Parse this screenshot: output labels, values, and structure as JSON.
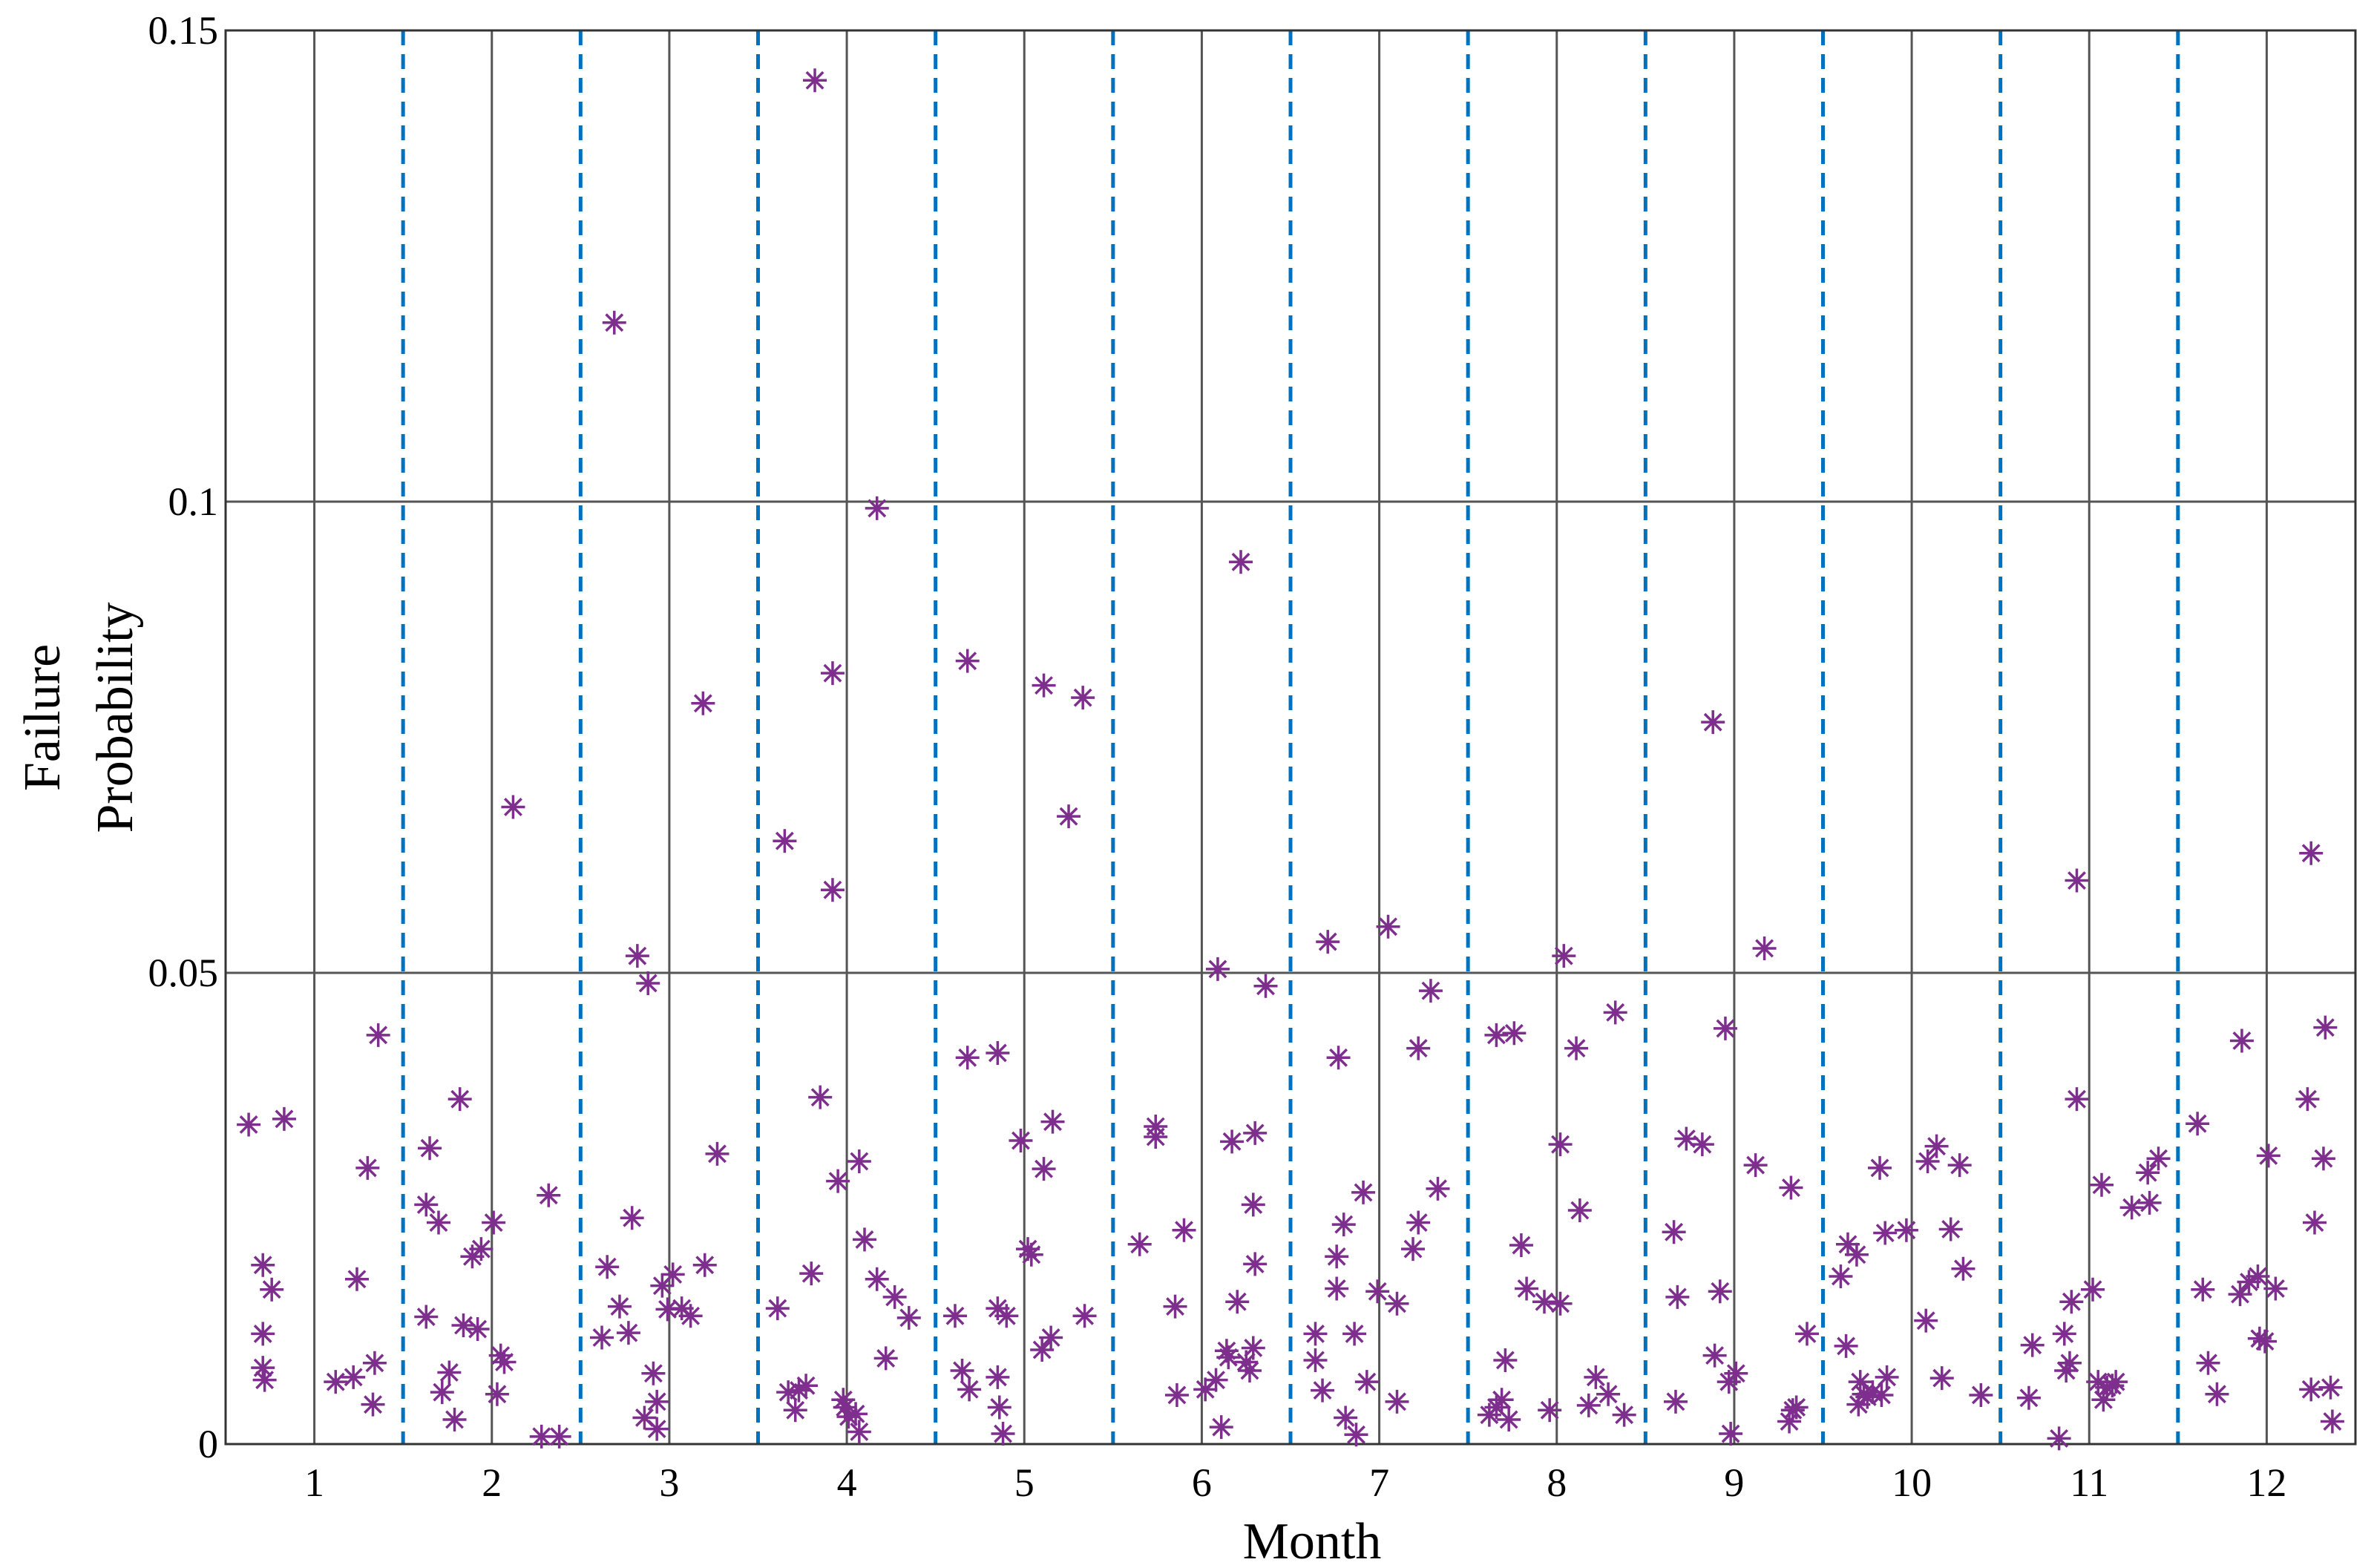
{
  "chart_data": {
    "type": "scatter",
    "marker": "asterisk",
    "color": "#7e2f8e",
    "xlabel": "Month",
    "ylabel": [
      "Failure",
      "Probability"
    ],
    "xlim": [
      0.5,
      12.5
    ],
    "xticks": [
      1,
      2,
      3,
      4,
      5,
      6,
      7,
      8,
      9,
      10,
      11,
      12
    ],
    "ylim": [
      0,
      0.15
    ],
    "yticks": [
      0,
      0.05,
      0.1,
      0.15
    ],
    "grid": true,
    "dividers": [
      1.5,
      2.5,
      3.5,
      4.5,
      5.5,
      6.5,
      7.5,
      8.5,
      9.5,
      10.5,
      11.5
    ],
    "divider_color": "#0072bd",
    "x": [
      0.63,
      0.71,
      0.71,
      0.71,
      0.72,
      0.76,
      0.83,
      1.12,
      1.22,
      1.24,
      1.3,
      1.33,
      1.34,
      1.36,
      1.63,
      1.65,
      1.63,
      1.7,
      1.72,
      1.76,
      1.79,
      1.82,
      1.84,
      1.89,
      1.92,
      1.94,
      2.01,
      2.03,
      2.05,
      2.07,
      2.12,
      2.28,
      2.32,
      2.38,
      2.62,
      2.65,
      2.69,
      2.72,
      2.79,
      2.77,
      2.82,
      2.86,
      2.88,
      2.91,
      2.93,
      2.93,
      2.96,
      2.99,
      3.02,
      3.07,
      3.12,
      3.19,
      3.2,
      3.27,
      3.61,
      3.65,
      3.67,
      3.71,
      3.73,
      3.77,
      3.8,
      3.82,
      3.85,
      3.92,
      3.92,
      3.95,
      3.98,
      3.99,
      4.01,
      4.05,
      4.07,
      4.07,
      4.1,
      4.17,
      4.17,
      4.22,
      4.27,
      4.35,
      4.61,
      4.65,
      4.68,
      4.69,
      4.68,
      4.85,
      4.85,
      4.85,
      4.86,
      4.88,
      4.9,
      4.98,
      5.02,
      5.04,
      5.1,
      5.11,
      5.11,
      5.15,
      5.16,
      5.25,
      5.33,
      5.34,
      5.65,
      5.74,
      5.74,
      5.85,
      5.86,
      5.9,
      6.02,
      6.08,
      6.09,
      6.11,
      6.14,
      6.15,
      6.17,
      6.2,
      6.22,
      6.25,
      6.27,
      6.29,
      6.3,
      6.29,
      6.3,
      6.36,
      6.64,
      6.64,
      6.68,
      6.71,
      6.76,
      6.76,
      6.77,
      6.8,
      6.81,
      6.86,
      6.87,
      6.91,
      6.93,
      6.99,
      7.05,
      7.1,
      7.1,
      7.19,
      7.22,
      7.22,
      7.29,
      7.33,
      7.62,
      7.66,
      7.66,
      7.69,
      7.71,
      7.73,
      7.76,
      7.8,
      7.83,
      7.93,
      7.96,
      8.02,
      8.02,
      8.04,
      8.11,
      8.13,
      8.18,
      8.22,
      8.29,
      8.33,
      8.38,
      8.66,
      8.67,
      8.68,
      8.73,
      8.82,
      8.88,
      8.89,
      8.92,
      8.95,
      8.97,
      8.98,
      9.01,
      9.12,
      9.17,
      9.32,
      9.31,
      9.33,
      9.35,
      9.41,
      9.6,
      9.63,
      9.64,
      9.69,
      9.7,
      9.71,
      9.73,
      9.75,
      9.78,
      9.82,
      9.83,
      9.85,
      9.86,
      9.97,
      10.08,
      10.09,
      10.14,
      10.17,
      10.22,
      10.27,
      10.29,
      10.39,
      10.66,
      10.68,
      10.83,
      10.86,
      10.87,
      10.89,
      10.93,
      10.93,
      10.9,
      11.02,
      11.05,
      11.07,
      11.08,
      11.1,
      11.13,
      11.15,
      11.24,
      11.33,
      11.34,
      11.39,
      11.61,
      11.64,
      11.67,
      11.72,
      11.86,
      11.85,
      11.9,
      11.95,
      11.96,
      11.99,
      12.01,
      12.05,
      12.23,
      12.25,
      12.25,
      12.27,
      12.32,
      12.33,
      12.36,
      12.37
    ],
    "values": [
      0.0339,
      0.019,
      0.0117,
      0.0081,
      0.0068,
      0.0164,
      0.0345,
      0.0066,
      0.0071,
      0.0175,
      0.0293,
      0.0042,
      0.0086,
      0.0434,
      0.0254,
      0.0314,
      0.0135,
      0.0235,
      0.0055,
      0.0076,
      0.0026,
      0.0366,
      0.0126,
      0.0199,
      0.0122,
      0.0207,
      0.0235,
      0.0053,
      0.0094,
      0.0087,
      0.0676,
      0.0008,
      0.0264,
      0.0008,
      0.0113,
      0.0188,
      0.119,
      0.0146,
      0.024,
      0.0118,
      0.0518,
      0.0028,
      0.0489,
      0.0075,
      0.0045,
      0.0016,
      0.0168,
      0.0143,
      0.018,
      0.0144,
      0.0136,
      0.0786,
      0.019,
      0.0308,
      0.0144,
      0.064,
      0.0055,
      0.0036,
      0.0057,
      0.0062,
      0.0181,
      0.1447,
      0.0368,
      0.0818,
      0.0588,
      0.0279,
      0.0047,
      0.0039,
      0.0029,
      0.0032,
      0.0013,
      0.03,
      0.0217,
      0.0993,
      0.0175,
      0.0091,
      0.0156,
      0.0134,
      0.0136,
      0.0078,
      0.041,
      0.0058,
      0.0831,
      0.0415,
      0.0071,
      0.0144,
      0.0039,
      0.0011,
      0.0136,
      0.0322,
      0.0207,
      0.0201,
      0.01,
      0.0805,
      0.0292,
      0.0113,
      0.0342,
      0.0666,
      0.0792,
      0.0136,
      0.0212,
      0.0337,
      0.0326,
      0.0146,
      0.0052,
      0.0227,
      0.0058,
      0.0068,
      0.0504,
      0.0018,
      0.0099,
      0.0092,
      0.0321,
      0.0151,
      0.0936,
      0.0087,
      0.0078,
      0.0102,
      0.033,
      0.0254,
      0.0191,
      0.0486,
      0.0117,
      0.0089,
      0.0057,
      0.0533,
      0.0199,
      0.0165,
      0.041,
      0.0233,
      0.0028,
      0.0117,
      0.001,
      0.0267,
      0.0066,
      0.0162,
      0.0549,
      0.0149,
      0.0045,
      0.0207,
      0.0235,
      0.042,
      0.0481,
      0.0271,
      0.0031,
      0.0434,
      0.0039,
      0.0047,
      0.0089,
      0.0026,
      0.0436,
      0.0211,
      0.0165,
      0.0151,
      0.0036,
      0.0149,
      0.0318,
      0.0518,
      0.042,
      0.0248,
      0.0041,
      0.0071,
      0.0053,
      0.0458,
      0.0031,
      0.0225,
      0.0045,
      0.0156,
      0.0324,
      0.0318,
      0.0766,
      0.0094,
      0.0162,
      0.0441,
      0.0066,
      0.0011,
      0.0075,
      0.0296,
      0.0526,
      0.0272,
      0.0024,
      0.0036,
      0.0039,
      0.0117,
      0.0178,
      0.0104,
      0.0212,
      0.0201,
      0.0042,
      0.0066,
      0.0053,
      0.005,
      0.0055,
      0.0293,
      0.0052,
      0.0224,
      0.0071,
      0.0227,
      0.0131,
      0.03,
      0.0316,
      0.007,
      0.0228,
      0.0296,
      0.0186,
      0.0052,
      0.0049,
      0.0105,
      0.0006,
      0.0117,
      0.0078,
      0.0086,
      0.0598,
      0.0366,
      0.0151,
      0.0164,
      0.0066,
      0.0275,
      0.0047,
      0.006,
      0.0062,
      0.0066,
      0.0251,
      0.0288,
      0.0256,
      0.0303,
      0.034,
      0.0164,
      0.0086,
      0.0053,
      0.0428,
      0.0159,
      0.0172,
      0.0178,
      0.0112,
      0.0109,
      0.0306,
      0.0165,
      0.0366,
      0.0627,
      0.0058,
      0.0235,
      0.0303,
      0.0442,
      0.006,
      0.0024
    ]
  }
}
